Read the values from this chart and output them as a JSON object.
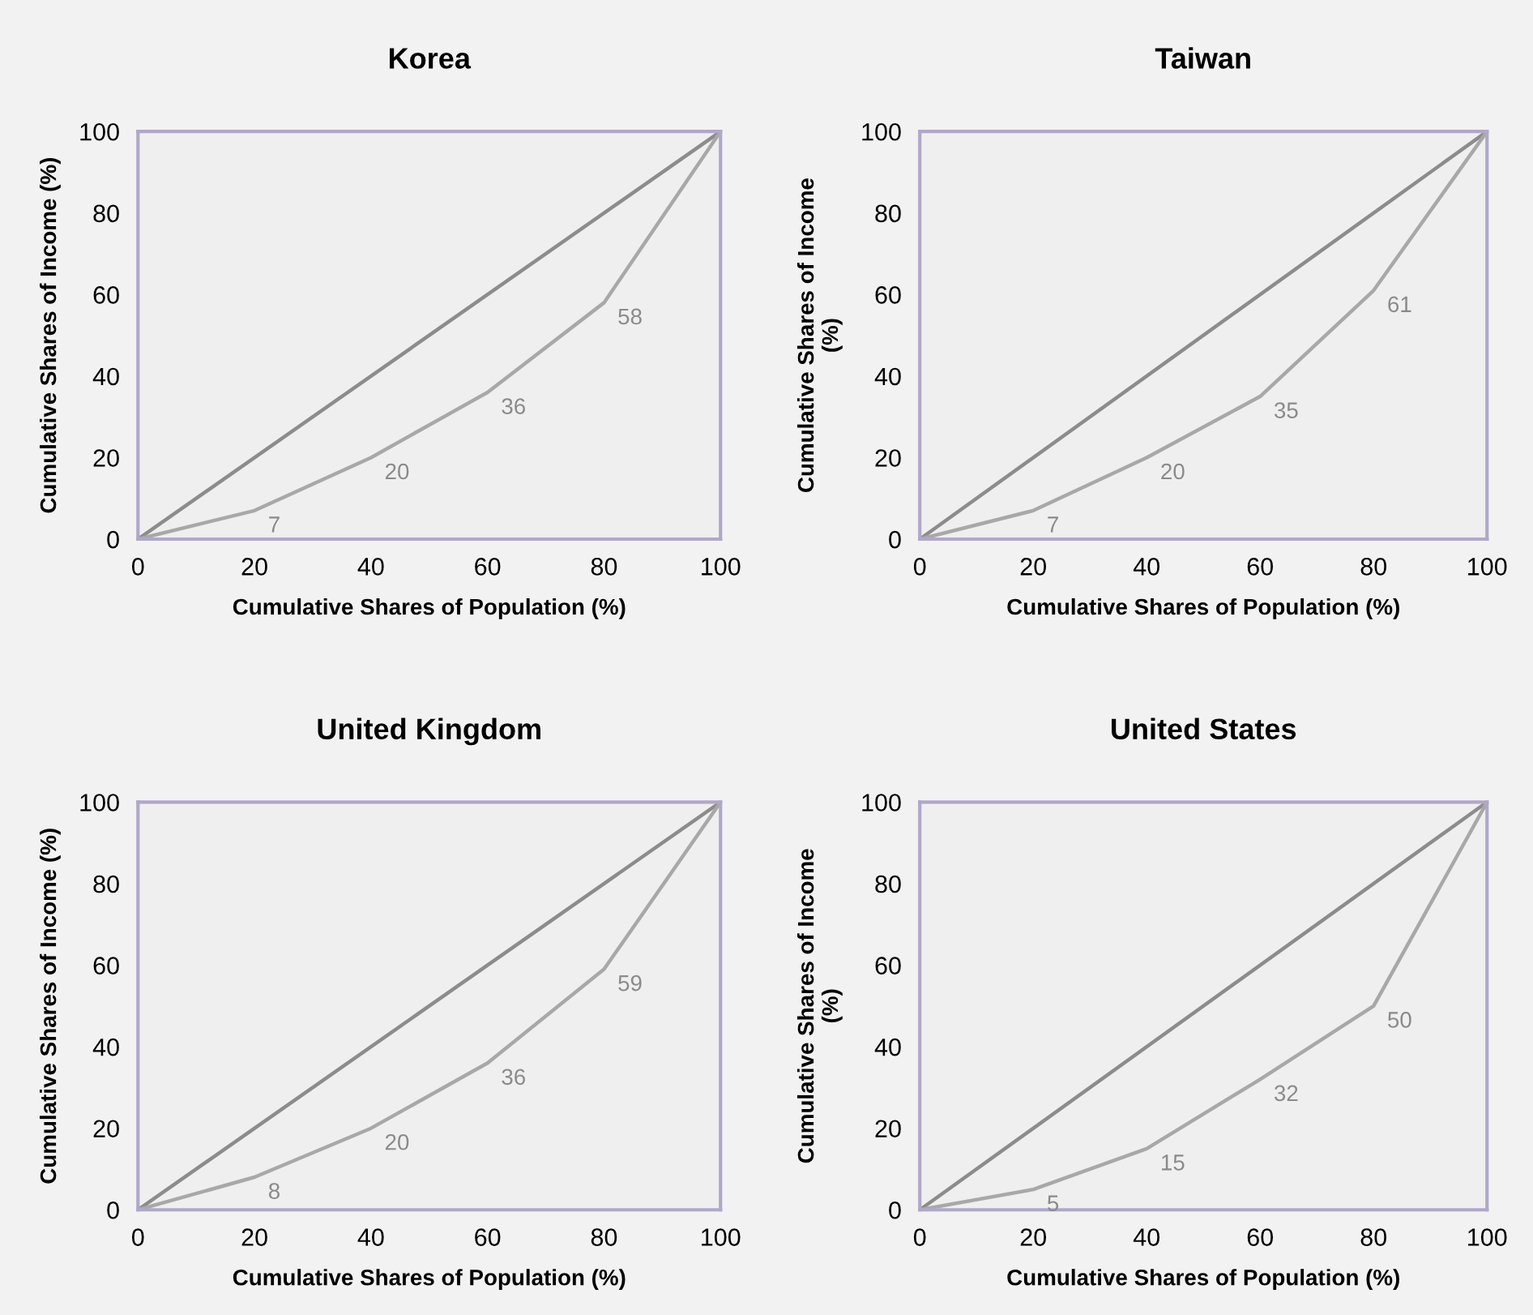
{
  "chart_data": [
    {
      "type": "line",
      "title": "Korea",
      "xlabel": "Cumulative Shares of Population (%)",
      "ylabel": "Cumulative Shares of Income (%)",
      "xlim": [
        0,
        100
      ],
      "ylim": [
        0,
        100
      ],
      "xticks": [
        0,
        20,
        40,
        60,
        80,
        100
      ],
      "yticks": [
        0,
        20,
        40,
        60,
        80,
        100
      ],
      "grid": false,
      "marker": "none",
      "line_style": "solid",
      "series": [
        {
          "x": [
            0,
            100
          ],
          "values": [
            0,
            100
          ],
          "color": "#8c8c8c"
        },
        {
          "x": [
            0,
            20,
            40,
            60,
            80,
            100
          ],
          "values": [
            0,
            7,
            20,
            36,
            58,
            100
          ],
          "color": "#a8a8a8",
          "value_labels": [
            null,
            "7",
            "20",
            "36",
            "58",
            null
          ]
        }
      ]
    },
    {
      "type": "line",
      "title": "Taiwan",
      "xlabel": "Cumulative Shares of Population (%)",
      "ylabel": "Cumulative Shares of Income\n(%)",
      "xlim": [
        0,
        100
      ],
      "ylim": [
        0,
        100
      ],
      "xticks": [
        0,
        20,
        40,
        60,
        80,
        100
      ],
      "yticks": [
        0,
        20,
        40,
        60,
        80,
        100
      ],
      "grid": false,
      "marker": "none",
      "line_style": "solid",
      "series": [
        {
          "x": [
            0,
            100
          ],
          "values": [
            0,
            100
          ],
          "color": "#8c8c8c"
        },
        {
          "x": [
            0,
            20,
            40,
            60,
            80,
            100
          ],
          "values": [
            0,
            7,
            20,
            35,
            61,
            100
          ],
          "color": "#a8a8a8",
          "value_labels": [
            null,
            "7",
            "20",
            "35",
            "61",
            null
          ]
        }
      ]
    },
    {
      "type": "line",
      "title": "United Kingdom",
      "xlabel": "Cumulative Shares of Population (%)",
      "ylabel": "Cumulative Shares of Income (%)",
      "xlim": [
        0,
        100
      ],
      "ylim": [
        0,
        100
      ],
      "xticks": [
        0,
        20,
        40,
        60,
        80,
        100
      ],
      "yticks": [
        0,
        20,
        40,
        60,
        80,
        100
      ],
      "grid": false,
      "marker": "none",
      "line_style": "solid",
      "series": [
        {
          "x": [
            0,
            100
          ],
          "values": [
            0,
            100
          ],
          "color": "#8c8c8c"
        },
        {
          "x": [
            0,
            20,
            40,
            60,
            80,
            100
          ],
          "values": [
            0,
            8,
            20,
            36,
            59,
            100
          ],
          "color": "#a8a8a8",
          "value_labels": [
            null,
            "8",
            "20",
            "36",
            "59",
            null
          ]
        }
      ]
    },
    {
      "type": "line",
      "title": "United States",
      "xlabel": "Cumulative Shares of Population (%)",
      "ylabel": "Cumulative Shares of Income\n(%)",
      "xlim": [
        0,
        100
      ],
      "ylim": [
        0,
        100
      ],
      "xticks": [
        0,
        20,
        40,
        60,
        80,
        100
      ],
      "yticks": [
        0,
        20,
        40,
        60,
        80,
        100
      ],
      "grid": false,
      "marker": "none",
      "line_style": "solid",
      "series": [
        {
          "x": [
            0,
            100
          ],
          "values": [
            0,
            100
          ],
          "color": "#8c8c8c"
        },
        {
          "x": [
            0,
            20,
            40,
            60,
            80,
            100
          ],
          "values": [
            0,
            5,
            15,
            32,
            50,
            100
          ],
          "color": "#a8a8a8",
          "value_labels": [
            null,
            "5",
            "15",
            "32",
            "50",
            null
          ]
        }
      ]
    }
  ]
}
